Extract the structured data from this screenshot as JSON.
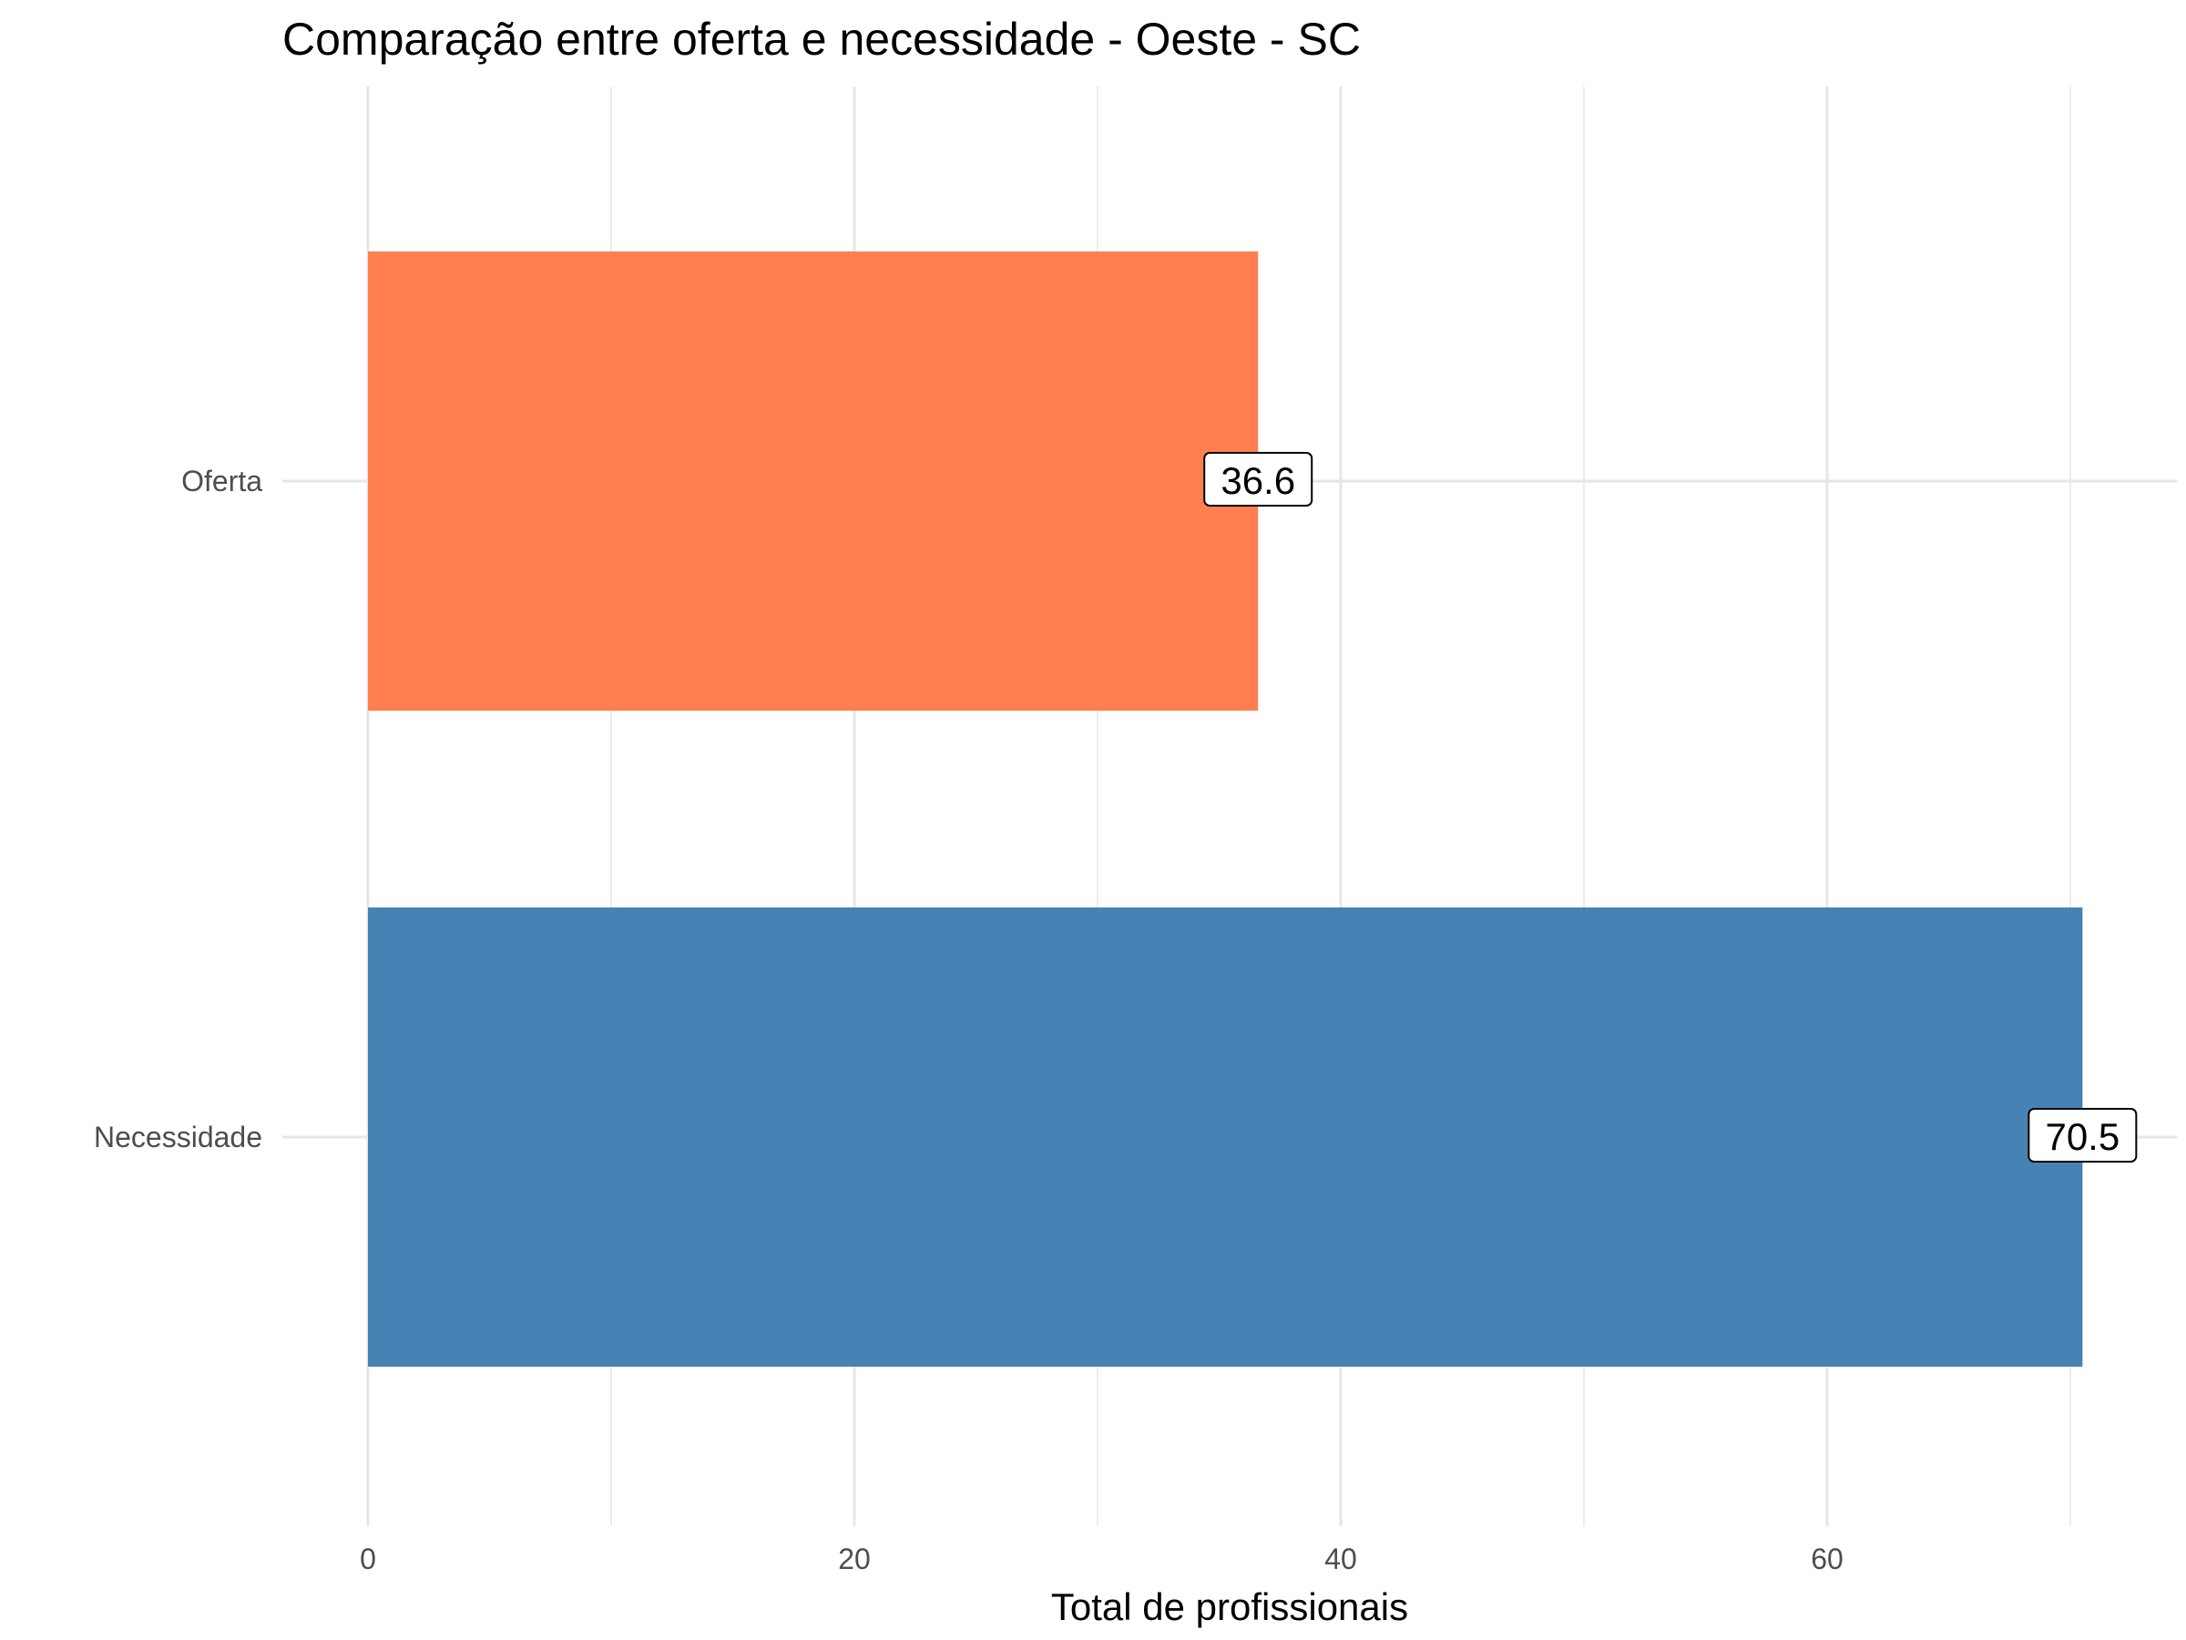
{
  "chart_data": {
    "type": "bar",
    "orientation": "horizontal",
    "title": "Comparação entre oferta e necessidade - Oeste - SC",
    "xlabel": "Total de profissionais",
    "ylabel": "",
    "categories": [
      "Oferta",
      "Necessidade"
    ],
    "values": [
      36.6,
      70.5
    ],
    "value_labels": [
      "36.6",
      "70.5"
    ],
    "colors": [
      "#FF7F50",
      "#4682B4"
    ],
    "xlim": [
      0,
      74
    ],
    "xticks": [
      0,
      20,
      40,
      60
    ],
    "xtick_labels": [
      "0",
      "20",
      "40",
      "60"
    ],
    "grid": true,
    "legend": "none"
  }
}
